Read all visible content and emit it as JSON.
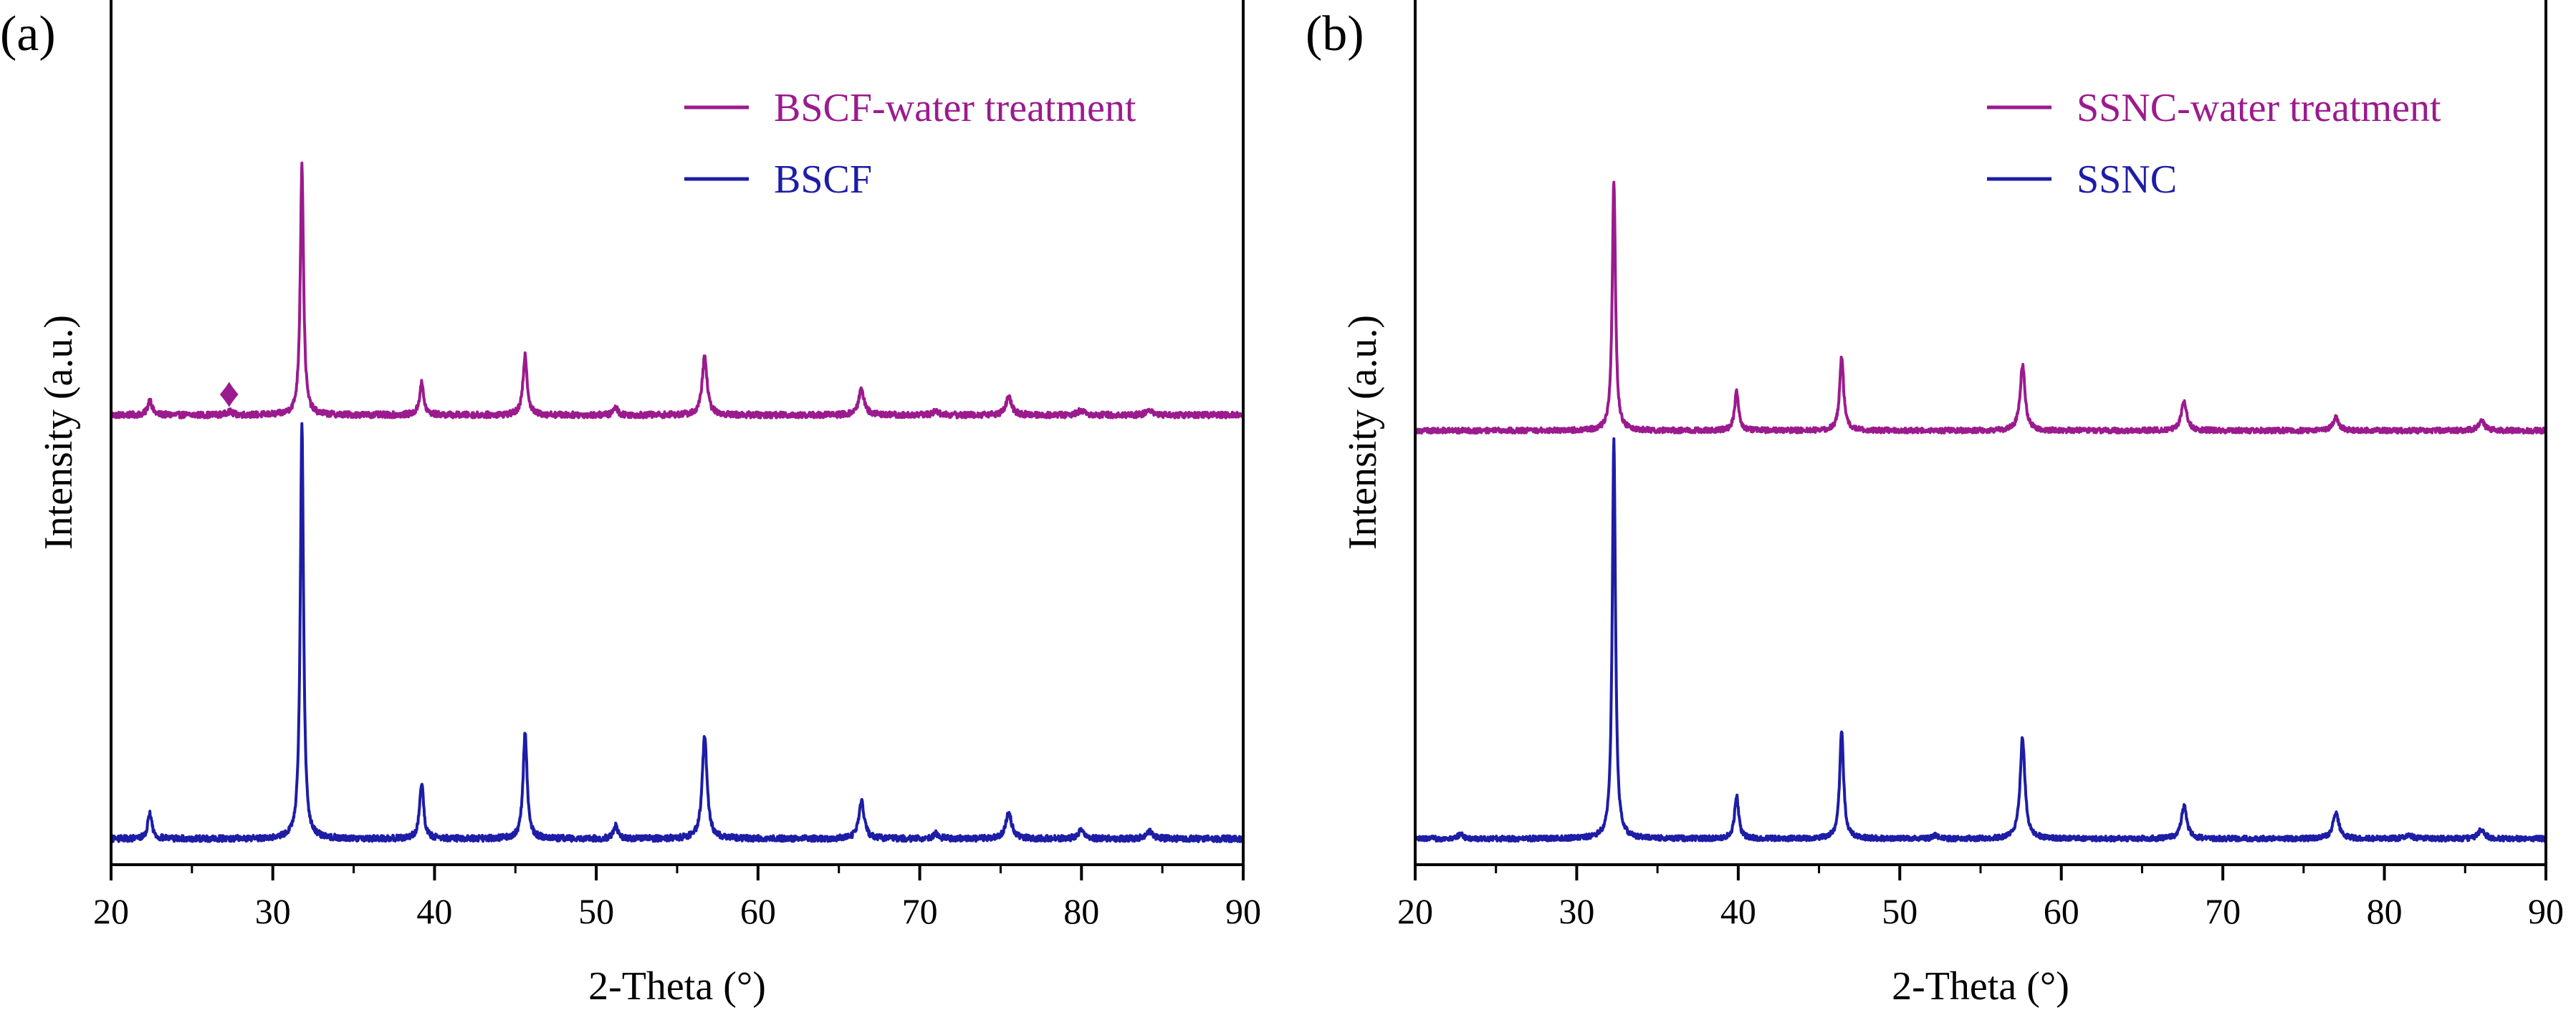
{
  "colors": {
    "treated": "#9b1b8e",
    "pristine": "#1d1da6",
    "axis": "#000000"
  },
  "chart_data": [
    {
      "type": "line",
      "panel_label": "(a)",
      "xlabel": "2-Theta (°)",
      "ylabel": "Intensity (a.u.)",
      "xlim": [
        20,
        90
      ],
      "ylim": [
        0,
        100
      ],
      "xticks": [
        20,
        30,
        40,
        50,
        60,
        70,
        80,
        90
      ],
      "yticks_shown": false,
      "legend_position": "top-right",
      "annotations": [
        {
          "symbol": "♦",
          "x": 27.3,
          "y": 53,
          "series": "BSCF-water treatment"
        }
      ],
      "series": [
        {
          "name": "BSCF-water treatment",
          "color_key": "treated",
          "baseline": 52,
          "noise": 0.35,
          "peaks": [
            {
              "x": 22.4,
              "height": 1.8,
              "width": 0.15
            },
            {
              "x": 27.3,
              "height": 0.4,
              "width": 0.2
            },
            {
              "x": 31.8,
              "height": 29,
              "width": 0.12
            },
            {
              "x": 39.2,
              "height": 3.7,
              "width": 0.15
            },
            {
              "x": 45.6,
              "height": 7.0,
              "width": 0.15
            },
            {
              "x": 51.2,
              "height": 0.9,
              "width": 0.15
            },
            {
              "x": 56.7,
              "height": 6.7,
              "width": 0.18
            },
            {
              "x": 66.4,
              "height": 3.0,
              "width": 0.2
            },
            {
              "x": 71.0,
              "height": 0.5,
              "width": 0.2
            },
            {
              "x": 75.5,
              "height": 2.0,
              "width": 0.22
            },
            {
              "x": 80.0,
              "height": 0.6,
              "width": 0.22
            },
            {
              "x": 84.2,
              "height": 0.6,
              "width": 0.22
            }
          ]
        },
        {
          "name": "BSCF",
          "color_key": "pristine",
          "baseline": 3,
          "noise": 0.35,
          "peaks": [
            {
              "x": 22.4,
              "height": 3.0,
              "width": 0.15
            },
            {
              "x": 31.8,
              "height": 48,
              "width": 0.12
            },
            {
              "x": 39.2,
              "height": 6.5,
              "width": 0.15
            },
            {
              "x": 45.6,
              "height": 12.3,
              "width": 0.15
            },
            {
              "x": 51.2,
              "height": 1.5,
              "width": 0.15
            },
            {
              "x": 56.7,
              "height": 11.8,
              "width": 0.18
            },
            {
              "x": 66.4,
              "height": 4.3,
              "width": 0.2
            },
            {
              "x": 71.0,
              "height": 0.6,
              "width": 0.2
            },
            {
              "x": 75.5,
              "height": 3.0,
              "width": 0.22
            },
            {
              "x": 80.0,
              "height": 1.0,
              "width": 0.22
            },
            {
              "x": 84.2,
              "height": 0.9,
              "width": 0.22
            }
          ]
        }
      ]
    },
    {
      "type": "line",
      "panel_label": "(b)",
      "xlabel": "2-Theta (°)",
      "ylabel": "Intensity (a.u.)",
      "xlim": [
        20,
        90
      ],
      "ylim": [
        0,
        100
      ],
      "xticks": [
        20,
        30,
        40,
        50,
        60,
        70,
        80,
        90
      ],
      "yticks_shown": false,
      "legend_position": "top-right",
      "annotations": [],
      "series": [
        {
          "name": "SSNC-water treatment",
          "color_key": "treated",
          "baseline": 50.2,
          "noise": 0.3,
          "peaks": [
            {
              "x": 32.3,
              "height": 29,
              "width": 0.12
            },
            {
              "x": 39.9,
              "height": 4.5,
              "width": 0.15
            },
            {
              "x": 46.4,
              "height": 8.5,
              "width": 0.15
            },
            {
              "x": 57.6,
              "height": 7.6,
              "width": 0.18
            },
            {
              "x": 67.6,
              "height": 3.4,
              "width": 0.2
            },
            {
              "x": 77.0,
              "height": 1.5,
              "width": 0.22
            },
            {
              "x": 86.0,
              "height": 1.2,
              "width": 0.22
            }
          ]
        },
        {
          "name": "SSNC",
          "color_key": "pristine",
          "baseline": 3,
          "noise": 0.3,
          "peaks": [
            {
              "x": 22.8,
              "height": 0.6,
              "width": 0.15
            },
            {
              "x": 32.3,
              "height": 46,
              "width": 0.12
            },
            {
              "x": 39.9,
              "height": 5.0,
              "width": 0.15
            },
            {
              "x": 46.4,
              "height": 12.3,
              "width": 0.15
            },
            {
              "x": 52.2,
              "height": 0.4,
              "width": 0.15
            },
            {
              "x": 57.6,
              "height": 11.7,
              "width": 0.18
            },
            {
              "x": 67.6,
              "height": 3.8,
              "width": 0.2
            },
            {
              "x": 77.0,
              "height": 3.0,
              "width": 0.22
            },
            {
              "x": 81.5,
              "height": 0.5,
              "width": 0.22
            },
            {
              "x": 86.0,
              "height": 1.1,
              "width": 0.22
            }
          ]
        }
      ]
    }
  ]
}
